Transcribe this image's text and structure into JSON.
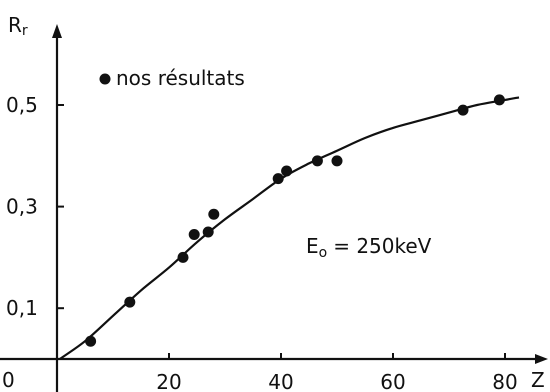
{
  "chart_data": {
    "type": "scatter",
    "ylabel": {
      "main": "R",
      "sub": "r"
    },
    "xlabel": "Z",
    "origin_label": "0",
    "x_ticks": [
      20,
      40,
      60,
      80
    ],
    "x_tick_labels": [
      "20",
      "40",
      "60",
      "80"
    ],
    "y_ticks": [
      0.1,
      0.3,
      0.5
    ],
    "y_tick_labels": [
      "0,1",
      "0,3",
      "0,5"
    ],
    "xlim": [
      0,
      88
    ],
    "ylim": [
      0,
      0.62
    ],
    "legend": {
      "symbol": "•",
      "label": "nos résultats",
      "placement": "top-left"
    },
    "annotation": {
      "main": "E",
      "sub": "o",
      "rest": "= 250keV"
    },
    "series": [
      {
        "name": "nos résultats",
        "points": [
          [
            6,
            0.035
          ],
          [
            13,
            0.112
          ],
          [
            22.5,
            0.2
          ],
          [
            24.5,
            0.245
          ],
          [
            27,
            0.25
          ],
          [
            28,
            0.285
          ],
          [
            39.5,
            0.355
          ],
          [
            41,
            0.37
          ],
          [
            46.5,
            0.39
          ],
          [
            50,
            0.39
          ],
          [
            72.5,
            0.49
          ],
          [
            79,
            0.51
          ]
        ]
      }
    ],
    "fit_curve": [
      [
        0.5,
        0.0
      ],
      [
        5,
        0.035
      ],
      [
        10,
        0.085
      ],
      [
        15,
        0.135
      ],
      [
        20,
        0.18
      ],
      [
        25,
        0.23
      ],
      [
        30,
        0.275
      ],
      [
        35,
        0.315
      ],
      [
        40,
        0.355
      ],
      [
        45,
        0.385
      ],
      [
        50,
        0.41
      ],
      [
        55,
        0.435
      ],
      [
        60,
        0.455
      ],
      [
        65,
        0.47
      ],
      [
        70,
        0.485
      ],
      [
        75,
        0.5
      ],
      [
        80,
        0.51
      ],
      [
        82.5,
        0.515
      ]
    ]
  }
}
